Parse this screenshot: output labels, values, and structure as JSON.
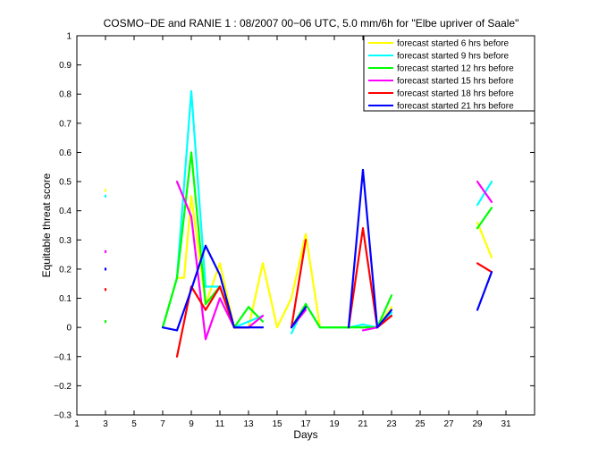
{
  "chart_data": {
    "type": "line",
    "title": "COSMO−DE and RANIE 1 : 08/2007 00−06 UTC, 5.0 mm/6h for \"Elbe upriver of Saale\"",
    "xlabel": "Days",
    "ylabel": "Equitable threat score",
    "xlim": [
      1,
      33
    ],
    "ylim": [
      -0.3,
      1
    ],
    "xticks": [
      1,
      3,
      5,
      7,
      9,
      11,
      13,
      15,
      17,
      19,
      21,
      23,
      25,
      27,
      29,
      31
    ],
    "xtick_labels": [
      "1",
      "3",
      "5",
      "7",
      "9",
      "11",
      "13",
      "15",
      "17",
      "19",
      "21",
      "23",
      "25",
      "27",
      "29",
      "31"
    ],
    "yticks": [
      -0.3,
      -0.2,
      -0.1,
      0,
      0.1,
      0.2,
      0.3,
      0.4,
      0.5,
      0.6,
      0.7,
      0.8,
      0.9,
      1
    ],
    "ytick_labels": [
      "−0.3",
      "−0.2",
      "−0.1",
      "0",
      "0.1",
      "0.2",
      "0.3",
      "0.4",
      "0.5",
      "0.6",
      "0.7",
      "0.8",
      "0.9",
      "1"
    ],
    "grid": false,
    "legend_position": "top-right",
    "series": [
      {
        "name": "forecast started 6 hrs before",
        "color": "#ffff00",
        "x": [
          3,
          7,
          8,
          8.5,
          9,
          10,
          11,
          12,
          13,
          14,
          15,
          16,
          17,
          18,
          19,
          20,
          21,
          22,
          23,
          29,
          30
        ],
        "y": [
          0.47,
          0.0,
          0.17,
          0.17,
          0.45,
          0.08,
          0.22,
          0.0,
          0.0,
          0.22,
          0.0,
          0.1,
          0.32,
          0.0,
          0.0,
          0.0,
          0.01,
          0.0,
          0.07,
          0.36,
          0.24
        ]
      },
      {
        "name": "forecast started 9 hrs before",
        "color": "#00ffff",
        "x": [
          3,
          7,
          8,
          9,
          10,
          11,
          12,
          13,
          14,
          16,
          17,
          18,
          19,
          20,
          21,
          22,
          23,
          29,
          30
        ],
        "y": [
          0.45,
          0.0,
          0.17,
          0.81,
          0.14,
          0.14,
          0.0,
          0.02,
          0.04,
          -0.02,
          0.08,
          0.0,
          0.0,
          0.0,
          0.01,
          0.0,
          0.05,
          0.42,
          0.5
        ]
      },
      {
        "name": "forecast started 12 hrs before",
        "color": "#00ff00",
        "x": [
          3,
          7,
          8,
          9,
          10,
          11,
          12,
          13,
          14,
          16,
          17,
          18,
          19,
          20,
          21,
          22,
          23,
          29,
          30
        ],
        "y": [
          0.02,
          0.0,
          0.17,
          0.6,
          0.08,
          0.14,
          0.0,
          0.07,
          0.02,
          0.0,
          0.08,
          0.0,
          0.0,
          0.0,
          0.0,
          0.0,
          0.11,
          0.34,
          0.41
        ]
      },
      {
        "name": "forecast started 15 hrs before",
        "color": "#ff00ff",
        "x": [
          3,
          8,
          9,
          10,
          11,
          12,
          13,
          14,
          16,
          17,
          21,
          22,
          23,
          29,
          30
        ],
        "y": [
          0.26,
          0.5,
          0.38,
          -0.04,
          0.1,
          0.0,
          0.0,
          0.04,
          0.0,
          0.06,
          -0.01,
          0.0,
          0.04,
          0.5,
          0.43
        ]
      },
      {
        "name": "forecast started 18 hrs before",
        "color": "#ff0000",
        "x": [
          3,
          8,
          9,
          10,
          11,
          12,
          13,
          16,
          17,
          20,
          21,
          22,
          23,
          29,
          30
        ],
        "y": [
          0.13,
          -0.1,
          0.14,
          0.06,
          0.14,
          0.0,
          0.0,
          0.0,
          0.3,
          0.0,
          0.34,
          0.0,
          0.04,
          0.22,
          0.19
        ]
      },
      {
        "name": "forecast started 21 hrs before",
        "color": "#0000ff",
        "x": [
          3,
          7,
          8,
          9,
          10,
          11,
          12,
          13,
          14,
          16,
          17,
          20,
          21,
          22,
          23,
          29,
          30
        ],
        "y": [
          0.2,
          0.0,
          -0.01,
          0.13,
          0.28,
          0.18,
          0.0,
          0.0,
          0.0,
          0.0,
          0.07,
          0.0,
          0.54,
          0.0,
          0.06,
          0.06,
          0.19
        ]
      }
    ]
  }
}
